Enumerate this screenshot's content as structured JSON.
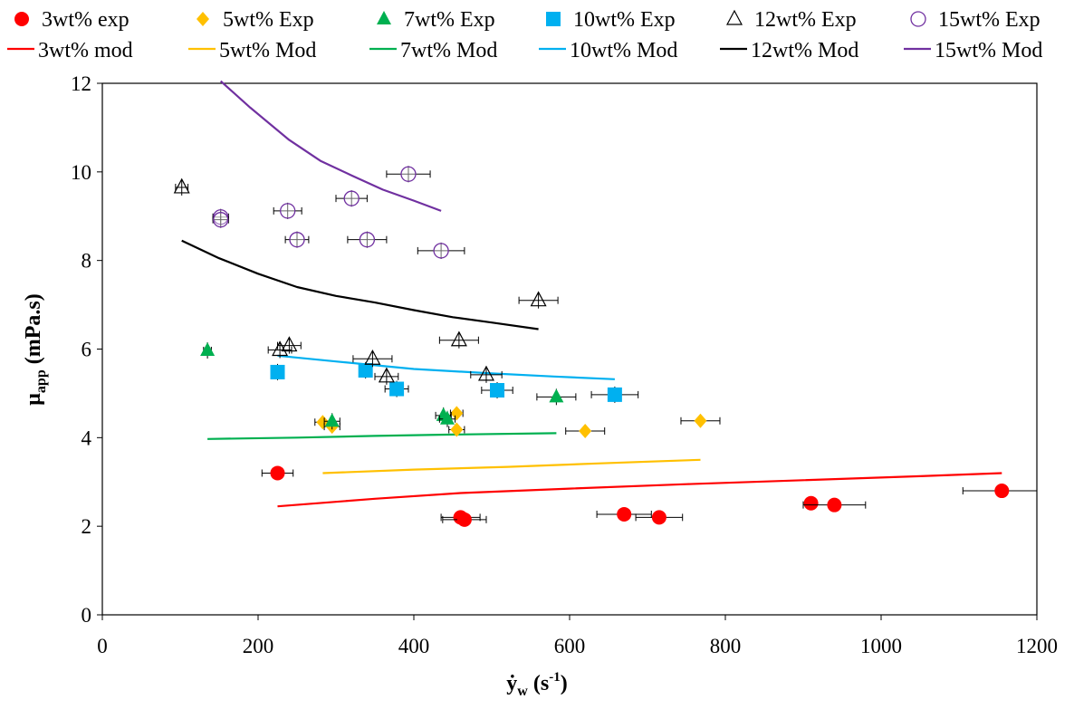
{
  "chart_data": {
    "type": "scatter",
    "xlabel": "γ̇w (s-1)",
    "ylabel": "μapp (mPa.s)",
    "xlim": [
      0,
      1200
    ],
    "ylim": [
      0,
      12
    ],
    "x_ticks": [
      "0",
      "200",
      "400",
      "600",
      "800",
      "1000",
      "1200"
    ],
    "y_ticks": [
      "0",
      "2",
      "4",
      "6",
      "8",
      "10",
      "12"
    ],
    "grid": false,
    "legend_position": "top",
    "legend": [
      {
        "key": "s3",
        "label": "3wt% exp"
      },
      {
        "key": "s5",
        "label": "5wt% Exp"
      },
      {
        "key": "s7",
        "label": "7wt% Exp"
      },
      {
        "key": "s10",
        "label": "10wt% Exp"
      },
      {
        "key": "s12",
        "label": "12wt% Exp"
      },
      {
        "key": "s15",
        "label": "15wt% Exp"
      },
      {
        "key": "m3",
        "label": "3wt% mod"
      },
      {
        "key": "m5",
        "label": "5wt% Mod"
      },
      {
        "key": "m7",
        "label": "7wt% Mod"
      },
      {
        "key": "m10",
        "label": "10wt% Mod"
      },
      {
        "key": "m12",
        "label": "12wt% Mod"
      },
      {
        "key": "m15",
        "label": "15wt% Mod"
      }
    ],
    "series": [
      {
        "key": "s3",
        "name": "3wt% exp",
        "kind": "points",
        "marker": "circle",
        "color": "#ff0000",
        "points": [
          [
            225,
            3.2,
            20
          ],
          [
            460,
            2.2,
            25
          ],
          [
            465,
            2.15,
            28
          ],
          [
            670,
            2.27,
            35
          ],
          [
            715,
            2.2,
            30
          ],
          [
            910,
            2.52,
            0
          ],
          [
            940,
            2.48,
            40
          ],
          [
            1155,
            2.8,
            50
          ]
        ]
      },
      {
        "key": "s5",
        "name": "5wt% Exp",
        "kind": "points",
        "marker": "diamond",
        "color": "#ffc000",
        "points": [
          [
            283,
            4.35,
            10
          ],
          [
            295,
            4.25,
            10
          ],
          [
            455,
            4.55,
            8
          ],
          [
            455,
            4.18,
            10
          ],
          [
            620,
            4.15,
            25
          ],
          [
            768,
            4.38,
            25
          ]
        ]
      },
      {
        "key": "s7",
        "name": "7wt% Exp",
        "kind": "points",
        "marker": "triangle-filled",
        "color": "#00b050",
        "points": [
          [
            135,
            5.97,
            5
          ],
          [
            295,
            4.37,
            10
          ],
          [
            438,
            4.5,
            10
          ],
          [
            443,
            4.42,
            10
          ],
          [
            583,
            4.92,
            25
          ]
        ]
      },
      {
        "key": "s10",
        "name": "10wt% Exp",
        "kind": "points",
        "marker": "square",
        "color": "#00b0f0",
        "points": [
          [
            225,
            5.48,
            0
          ],
          [
            338,
            5.52,
            0
          ],
          [
            378,
            5.1,
            15
          ],
          [
            507,
            5.07,
            20
          ],
          [
            658,
            4.97,
            30
          ]
        ]
      },
      {
        "key": "s12",
        "name": "12wt% Exp",
        "kind": "points",
        "marker": "triangle-open",
        "color": "#000000",
        "points": [
          [
            102,
            9.65,
            8
          ],
          [
            228,
            5.98,
            15
          ],
          [
            240,
            6.08,
            15
          ],
          [
            347,
            5.78,
            25
          ],
          [
            365,
            5.38,
            15
          ],
          [
            458,
            6.2,
            25
          ],
          [
            493,
            5.42,
            20
          ],
          [
            560,
            7.1,
            25
          ]
        ]
      },
      {
        "key": "s15",
        "name": "15wt% Exp",
        "kind": "points",
        "marker": "circle-open",
        "color": "#7030a0",
        "points": [
          [
            152,
            8.98,
            10
          ],
          [
            152,
            8.92,
            10
          ],
          [
            238,
            9.12,
            18
          ],
          [
            250,
            8.47,
            15
          ],
          [
            320,
            9.4,
            20
          ],
          [
            340,
            8.47,
            25
          ],
          [
            393,
            9.95,
            28
          ],
          [
            435,
            8.22,
            30
          ]
        ]
      },
      {
        "key": "m3",
        "name": "3wt% mod",
        "kind": "line",
        "color": "#ff0000",
        "points": [
          [
            225,
            2.45
          ],
          [
            350,
            2.62
          ],
          [
            460,
            2.75
          ],
          [
            600,
            2.85
          ],
          [
            750,
            2.95
          ],
          [
            900,
            3.04
          ],
          [
            1050,
            3.13
          ],
          [
            1155,
            3.2
          ]
        ]
      },
      {
        "key": "m5",
        "name": "5wt% Mod",
        "kind": "line",
        "color": "#ffc000",
        "points": [
          [
            283,
            3.2
          ],
          [
            400,
            3.28
          ],
          [
            520,
            3.34
          ],
          [
            640,
            3.42
          ],
          [
            768,
            3.5
          ]
        ]
      },
      {
        "key": "m7",
        "name": "7wt% Mod",
        "kind": "line",
        "color": "#00b050",
        "points": [
          [
            135,
            3.97
          ],
          [
            250,
            4.0
          ],
          [
            350,
            4.04
          ],
          [
            450,
            4.07
          ],
          [
            583,
            4.1
          ]
        ]
      },
      {
        "key": "m10",
        "name": "10wt% Mod",
        "kind": "line",
        "color": "#00b0f0",
        "points": [
          [
            225,
            5.85
          ],
          [
            300,
            5.72
          ],
          [
            400,
            5.55
          ],
          [
            500,
            5.45
          ],
          [
            580,
            5.38
          ],
          [
            658,
            5.32
          ]
        ]
      },
      {
        "key": "m12",
        "name": "12wt% Mod",
        "kind": "line",
        "color": "#000000",
        "points": [
          [
            102,
            8.45
          ],
          [
            150,
            8.05
          ],
          [
            200,
            7.7
          ],
          [
            250,
            7.4
          ],
          [
            300,
            7.2
          ],
          [
            350,
            7.05
          ],
          [
            400,
            6.88
          ],
          [
            450,
            6.72
          ],
          [
            500,
            6.6
          ],
          [
            560,
            6.45
          ]
        ]
      },
      {
        "key": "m15",
        "name": "15wt% Mod",
        "kind": "line",
        "color": "#7030a0",
        "points": [
          [
            152,
            12.05
          ],
          [
            190,
            11.45
          ],
          [
            240,
            10.72
          ],
          [
            280,
            10.25
          ],
          [
            320,
            9.92
          ],
          [
            360,
            9.6
          ],
          [
            400,
            9.35
          ],
          [
            435,
            9.12
          ]
        ]
      }
    ]
  }
}
